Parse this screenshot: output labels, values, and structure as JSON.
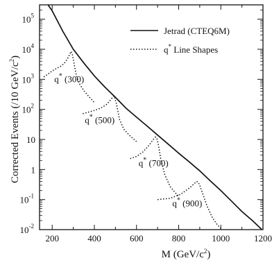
{
  "chart_data": {
    "type": "line",
    "xlabel_main": "M (GeV/c",
    "xlabel_sup": "2",
    "xlabel_end": ")",
    "ylabel_main": "Corrected Events (/10 GeV/c",
    "ylabel_sup": "2",
    "ylabel_end": ")",
    "x_ticks": [
      200,
      400,
      600,
      800,
      1000,
      1200
    ],
    "x_tick_labels": [
      "200",
      "400",
      "600",
      "800",
      "1000",
      "1200"
    ],
    "xlim": [
      140,
      1200
    ],
    "y_scale": "log",
    "ylim": [
      0.01,
      300000
    ],
    "y_ticks": [
      {
        "value": 100000,
        "base": "10",
        "exp": "5"
      },
      {
        "value": 10000,
        "base": "10",
        "exp": "4"
      },
      {
        "value": 1000,
        "base": "10",
        "exp": "3"
      },
      {
        "value": 100,
        "base": "10",
        "exp": "2"
      },
      {
        "value": 10,
        "base": "10",
        "exp": ""
      },
      {
        "value": 1,
        "base": "1",
        "exp": ""
      },
      {
        "value": 0.1,
        "base": "10",
        "exp": "-1"
      },
      {
        "value": 0.01,
        "base": "10",
        "exp": "-2"
      }
    ],
    "grid": false,
    "legend_position": "top-right",
    "series": [
      {
        "name": "Jetrad (CTEQ6M)",
        "style": "solid",
        "x": [
          180,
          200,
          250,
          300,
          350,
          400,
          450,
          500,
          550,
          600,
          650,
          700,
          750,
          800,
          850,
          900,
          950,
          1000,
          1050,
          1100,
          1150,
          1195
        ],
        "y": [
          300000,
          190000,
          40000,
          10000,
          3500,
          1300,
          550,
          250,
          110,
          55,
          28,
          14,
          7,
          3.5,
          1.8,
          0.9,
          0.42,
          0.2,
          0.09,
          0.04,
          0.02,
          0.01
        ]
      },
      {
        "name": "q* Line Shapes",
        "style": "dotted",
        "shapes": [
          {
            "label_main": "q",
            "label_sup": "*",
            "label_mass": "(300)",
            "label_at": [
              210,
              800
            ],
            "x": [
              160,
              180,
              200,
              220,
              240,
              255,
              265,
              275,
              285,
              290,
              296,
              305,
              315,
              330,
              350,
              375,
              400
            ],
            "y": [
              1200,
              1500,
              1900,
              2300,
              2700,
              3300,
              4000,
              5200,
              7200,
              8500,
              6500,
              3000,
              1300,
              700,
              420,
              260,
              170
            ]
          },
          {
            "label_main": "q",
            "label_sup": "*",
            "label_mass": "(500)",
            "label_at": [
              355,
              35
            ],
            "x": [
              345,
              375,
              400,
              430,
              455,
              470,
              480,
              490,
              495,
              505,
              520,
              540,
              565,
              600
            ],
            "y": [
              72,
              82,
              92,
              110,
              140,
              180,
              220,
              270,
              280,
              150,
              45,
              22,
              14,
              8.5
            ]
          },
          {
            "label_main": "q",
            "label_sup": "*",
            "label_mass": "(700)",
            "label_at": [
              610,
              1.3
            ],
            "x": [
              570,
              600,
              630,
              660,
              680,
              690,
              698,
              705,
              715,
              735,
              760,
              790,
              800
            ],
            "y": [
              2.3,
              2.7,
              3.8,
              6.5,
              10,
              12,
              10,
              6,
              2.2,
              0.65,
              0.27,
              0.15,
              0.13
            ]
          },
          {
            "label_main": "q",
            "label_sup": "*",
            "label_mass": "(900)",
            "label_at": [
              770,
              0.06
            ],
            "x": [
              700,
              760,
              810,
              850,
              870,
              885,
              892,
              900,
              915,
              935,
              960,
              985,
              1000
            ],
            "y": [
              0.1,
              0.11,
              0.15,
              0.24,
              0.32,
              0.4,
              0.38,
              0.3,
              0.15,
              0.06,
              0.025,
              0.014,
              0.011
            ]
          }
        ]
      }
    ]
  }
}
